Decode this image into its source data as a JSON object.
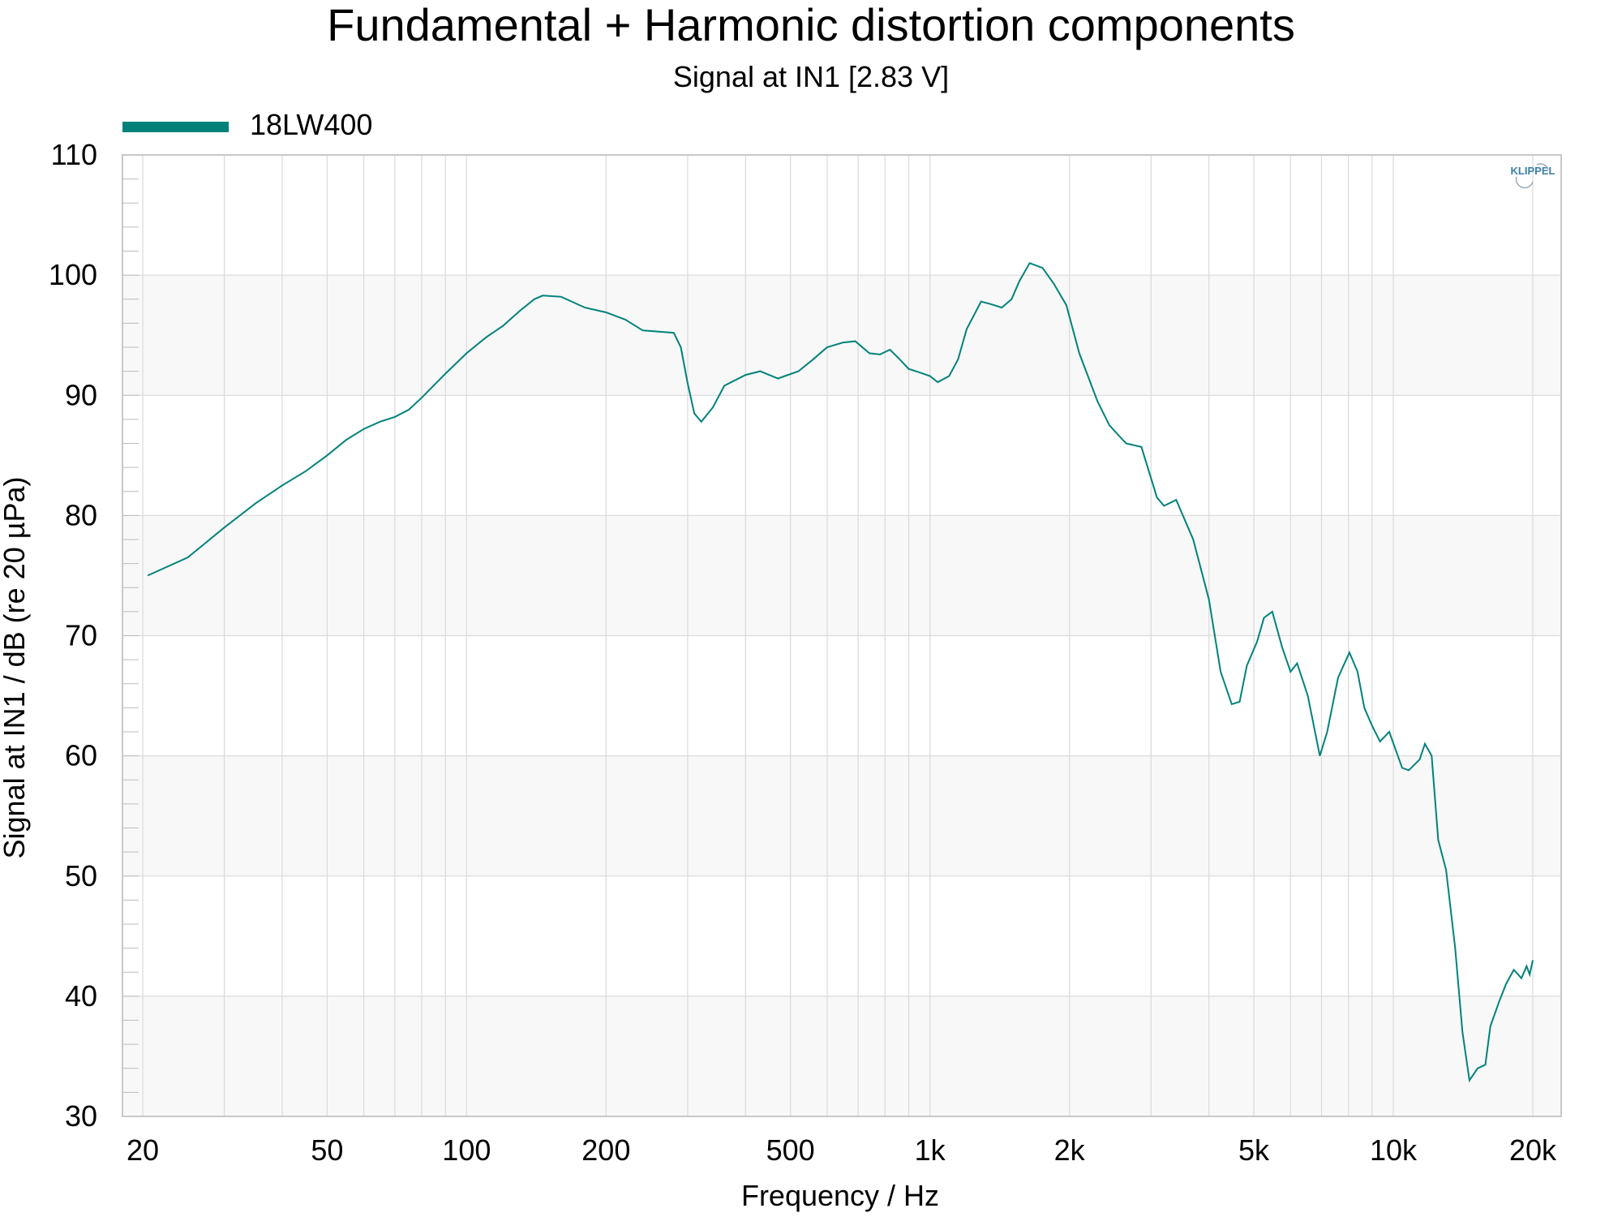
{
  "chart_data": {
    "type": "line",
    "title": "Fundamental + Harmonic distortion components",
    "subtitle": "Signal at IN1 [2.83 V]",
    "xlabel": "Frequency / Hz",
    "ylabel": "Signal at IN1 / dB (re 20 µPa)",
    "x_scale": "log",
    "xlim": [
      20,
      20000
    ],
    "ylim": [
      30,
      110
    ],
    "grid": true,
    "legend_placement": "top-left",
    "logo": "KLIPPEL",
    "x_ticks": [
      {
        "value": 20,
        "label": "20"
      },
      {
        "value": 50,
        "label": "50"
      },
      {
        "value": 100,
        "label": "100"
      },
      {
        "value": 200,
        "label": "200"
      },
      {
        "value": 500,
        "label": "500"
      },
      {
        "value": 1000,
        "label": "1k"
      },
      {
        "value": 2000,
        "label": "2k"
      },
      {
        "value": 5000,
        "label": "5k"
      },
      {
        "value": 10000,
        "label": "10k"
      },
      {
        "value": 20000,
        "label": "20k"
      }
    ],
    "y_ticks": [
      30,
      40,
      50,
      60,
      70,
      80,
      90,
      100,
      110
    ],
    "colors": {
      "series": "#00827a",
      "band": "#f8f8f8",
      "grid": "#dcdcdc",
      "frame": "#c8c8c8"
    },
    "series": [
      {
        "name": "18LW400",
        "x": [
          20.5,
          25,
          30,
          35,
          40,
          45,
          50,
          55,
          60,
          65,
          70,
          75,
          80,
          90,
          100,
          110,
          120,
          130,
          140,
          146,
          160,
          180,
          200,
          220,
          240,
          260,
          280,
          290,
          300,
          310,
          321,
          340,
          360,
          400,
          430,
          470,
          520,
          560,
          600,
          650,
          690,
          740,
          780,
          820,
          860,
          900,
          950,
          1000,
          1039,
          1100,
          1150,
          1200,
          1289,
          1350,
          1429,
          1500,
          1560,
          1641,
          1750,
          1850,
          1970,
          2100,
          2300,
          2440,
          2650,
          2860,
          3090,
          3200,
          3400,
          3700,
          4000,
          4240,
          4480,
          4660,
          4830,
          5080,
          5260,
          5480,
          5760,
          6000,
          6200,
          6540,
          6940,
          7200,
          7600,
          8040,
          8370,
          8660,
          9000,
          9360,
          9800,
          10450,
          10800,
          11400,
          11700,
          12100,
          12500,
          13000,
          13600,
          14100,
          14600,
          15200,
          15800,
          16200,
          16900,
          17500,
          18200,
          18900,
          19400,
          19700,
          20000
        ],
        "y": [
          75,
          76.5,
          79,
          81,
          82.5,
          83.7,
          85,
          86.3,
          87.2,
          87.8,
          88.2,
          88.8,
          89.8,
          91.8,
          93.5,
          94.8,
          95.8,
          97,
          98,
          98.3,
          98.2,
          97.3,
          96.9,
          96.3,
          95.4,
          95.3,
          95.2,
          94,
          91,
          88.5,
          87.8,
          89,
          90.8,
          91.7,
          92,
          91.4,
          92,
          93,
          94,
          94.4,
          94.5,
          93.5,
          93.4,
          93.8,
          93,
          92.2,
          91.9,
          91.6,
          91.1,
          91.6,
          93,
          95.5,
          97.8,
          97.6,
          97.3,
          98,
          99.5,
          101,
          100.6,
          99.3,
          97.5,
          93.5,
          89.5,
          87.5,
          86,
          85.7,
          81.5,
          80.8,
          81.3,
          78,
          73,
          67,
          64.3,
          64.5,
          67.5,
          69.5,
          71.5,
          72,
          69,
          67,
          67.7,
          65,
          60,
          62,
          66.5,
          68.6,
          67,
          64,
          62.5,
          61.2,
          62,
          59,
          58.8,
          59.7,
          61,
          60,
          53,
          50.5,
          44,
          37,
          33,
          34,
          34.3,
          37.5,
          39.5,
          41,
          42.2,
          41.5,
          42.5,
          41.8,
          43
        ]
      }
    ]
  }
}
